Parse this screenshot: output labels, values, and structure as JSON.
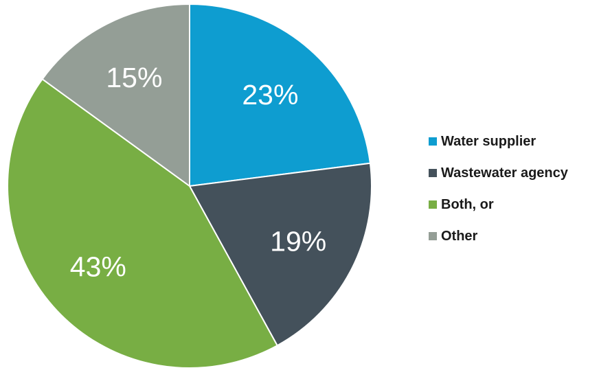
{
  "chart_data": {
    "type": "pie",
    "title": "",
    "slices": [
      {
        "label": "Water supplier",
        "value": 23,
        "display": "23%",
        "color": "#0e9dd0"
      },
      {
        "label": "Wastewater agency",
        "value": 19,
        "display": "19%",
        "color": "#44515b"
      },
      {
        "label": "Both, or",
        "value": 43,
        "display": "43%",
        "color": "#78ae44"
      },
      {
        "label": "Other",
        "value": 15,
        "display": "15%",
        "color": "#949e96"
      }
    ],
    "legend_position": "right",
    "start": "top, clockwise"
  }
}
